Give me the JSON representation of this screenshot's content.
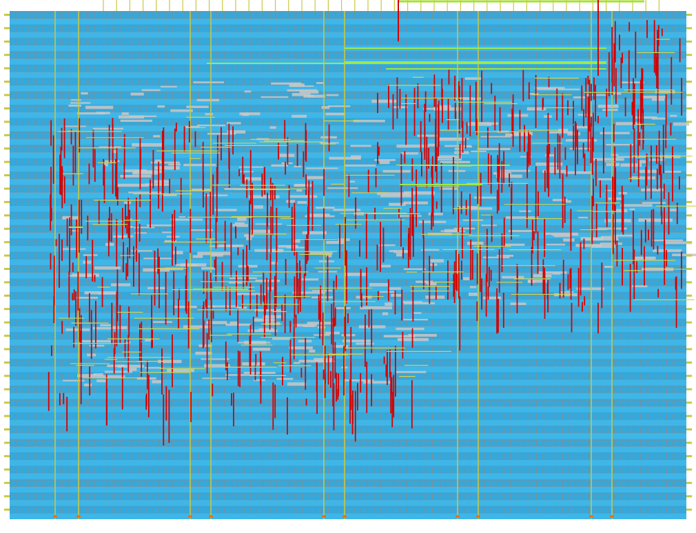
{
  "viewer": {
    "title": "",
    "zoom_label": ""
  },
  "layout": {
    "core_grid": {
      "rows": 38,
      "cols": 52,
      "region_color": "#3fb6e8",
      "row_line_color": "#2a9fd6",
      "cell_outline_color": "#1f86bd",
      "grid_line_color": "#8a8a8a",
      "filler_color": "#c8c8c8"
    },
    "power_straps": {
      "color": "#c8c840",
      "vertical_count": 9,
      "horizontal_bar_color": "#a6e22e"
    },
    "io_pins": {
      "color": "#c8c840",
      "count": 43
    },
    "routing": {
      "metal_vertical_color": "#d40000",
      "metal_horizontal_color": "#d4d44c",
      "highlight_color": "#9fe84a",
      "blockage_color": "#8c8c8c"
    },
    "congestion_region": {
      "description": "",
      "color": "#d40000"
    }
  }
}
